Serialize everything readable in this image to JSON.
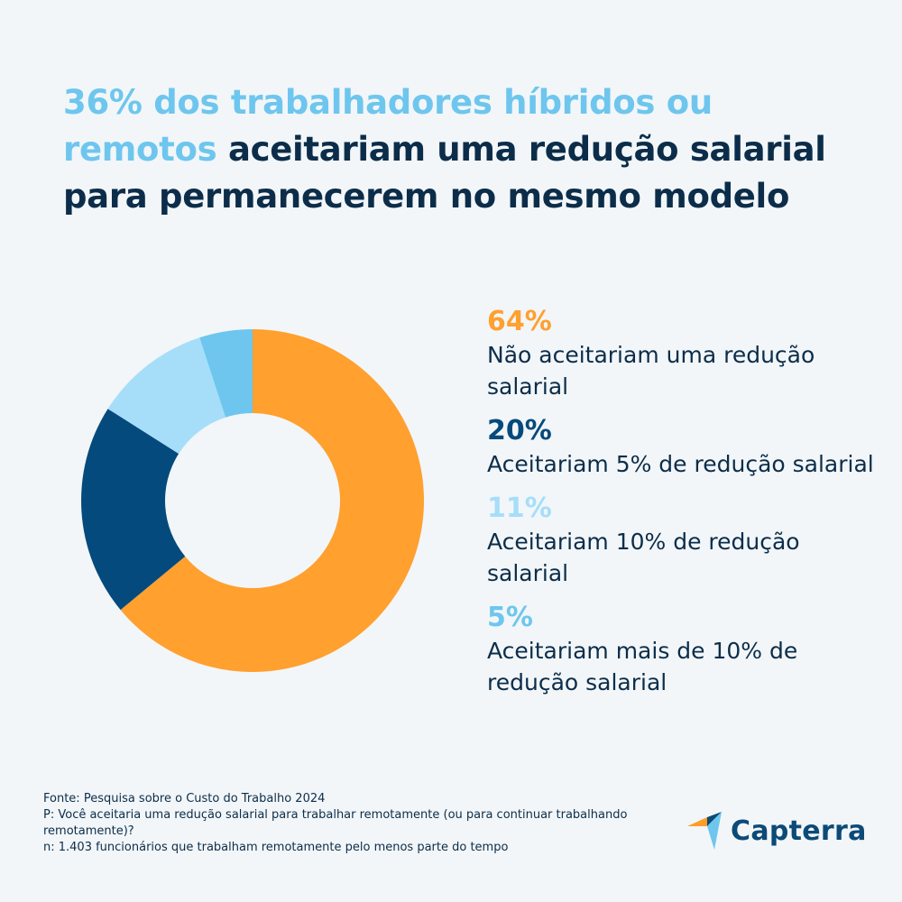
{
  "title": {
    "highlight": "36% dos trabalhadores híbridos ou remotos",
    "rest": " aceitariam uma redução salarial para permanecerem no mesmo modelo"
  },
  "chart_data": {
    "type": "pie",
    "variant": "donut",
    "title": "36% dos trabalhadores híbridos ou remotos aceitariam uma redução salarial para permanecerem no mesmo modelo",
    "legend_placement": "right",
    "slices": [
      {
        "label": "Não aceitariam uma redução salarial",
        "value": 64,
        "display": "64%",
        "color": "#ffa02f"
      },
      {
        "label": "Aceitariam 5% de redução salarial",
        "value": 20,
        "display": "20%",
        "color": "#054a7c"
      },
      {
        "label": "Aceitariam 10% de redução salarial",
        "value": 11,
        "display": "11%",
        "color": "#a6defa"
      },
      {
        "label": "Aceitariam mais de 10% de redução salarial",
        "value": 5,
        "display": "5%",
        "color": "#6ec6ee"
      }
    ]
  },
  "footnote": {
    "source": "Fonte: Pesquisa sobre o Custo do Trabalho 2024",
    "question": "P: Você aceitaria uma redução salarial para trabalhar remotamente (ou para continuar trabalhando remotamente)?",
    "sample": "n: 1.403 funcionários que trabalham remotamente pelo menos parte do tempo"
  },
  "logo": {
    "text": "Capterra",
    "colors": {
      "orange": "#ff9d28",
      "blue": "#0c4a78",
      "light_blue": "#6ec6ee"
    }
  }
}
